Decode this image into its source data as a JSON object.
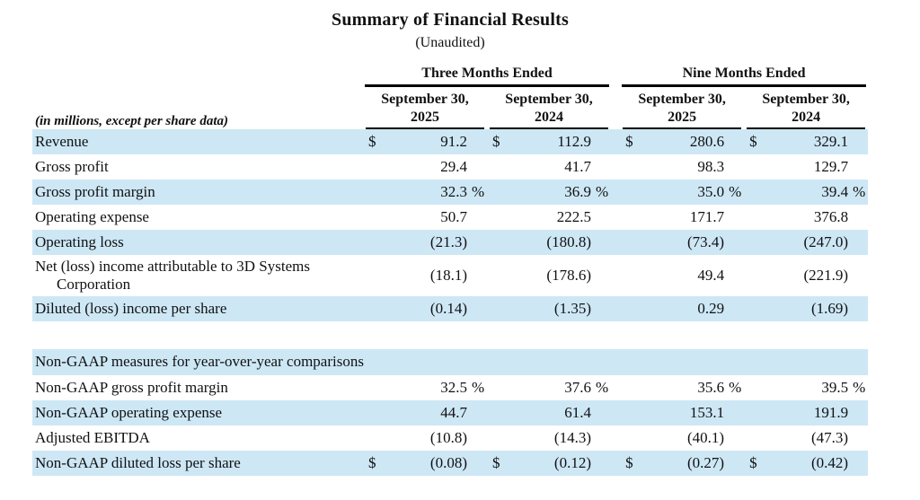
{
  "title": "Summary of Financial Results",
  "subtitle": "(Unaudited)",
  "table": {
    "label_header": "(in millions, except per share data)",
    "groups": [
      "Three Months Ended",
      "Nine Months Ended"
    ],
    "columns": [
      {
        "month": "September 30,",
        "year": "2025"
      },
      {
        "month": "September 30,",
        "year": "2024"
      },
      {
        "month": "September 30,",
        "year": "2025"
      },
      {
        "month": "September 30,",
        "year": "2024"
      }
    ],
    "rows": [
      {
        "type": "data",
        "shade": true,
        "label": "Revenue",
        "cells": [
          {
            "cur": "$",
            "val": "91.2"
          },
          {
            "cur": "$",
            "val": "112.9"
          },
          {
            "cur": "$",
            "val": "280.6"
          },
          {
            "cur": "$",
            "val": "329.1"
          }
        ]
      },
      {
        "type": "data",
        "shade": false,
        "label": "Gross profit",
        "cells": [
          {
            "val": "29.4"
          },
          {
            "val": "41.7"
          },
          {
            "val": "98.3"
          },
          {
            "val": "129.7"
          }
        ]
      },
      {
        "type": "data",
        "shade": true,
        "label": "Gross profit margin",
        "cells": [
          {
            "val": "32.3",
            "pct": "%"
          },
          {
            "val": "36.9",
            "pct": "%"
          },
          {
            "val": "35.0",
            "pct": "%"
          },
          {
            "val": "39.4",
            "pct": "%"
          }
        ]
      },
      {
        "type": "data",
        "shade": false,
        "label": "Operating expense",
        "cells": [
          {
            "val": "50.7"
          },
          {
            "val": "222.5"
          },
          {
            "val": "171.7"
          },
          {
            "val": "376.8"
          }
        ]
      },
      {
        "type": "data",
        "shade": true,
        "label": "Operating loss",
        "cells": [
          {
            "val": "(21.3)"
          },
          {
            "val": "(180.8)"
          },
          {
            "val": "(73.4)"
          },
          {
            "val": "(247.0)"
          }
        ]
      },
      {
        "type": "data",
        "shade": false,
        "tall": true,
        "label_lines": [
          "Net (loss) income attributable to 3D Systems",
          "Corporation"
        ],
        "cells": [
          {
            "val": "(18.1)"
          },
          {
            "val": "(178.6)"
          },
          {
            "val": "49.4"
          },
          {
            "val": "(221.9)"
          }
        ]
      },
      {
        "type": "data",
        "shade": true,
        "label": "Diluted (loss) income per share",
        "cells": [
          {
            "val": "(0.14)"
          },
          {
            "val": "(1.35)"
          },
          {
            "val": "0.29"
          },
          {
            "val": "(1.69)"
          }
        ]
      },
      {
        "type": "spacer"
      },
      {
        "type": "section",
        "shade": true,
        "label": "Non-GAAP measures for year-over-year comparisons"
      },
      {
        "type": "data",
        "shade": false,
        "label": "Non-GAAP gross profit margin",
        "cells": [
          {
            "val": "32.5",
            "pct": "%"
          },
          {
            "val": "37.6",
            "pct": "%"
          },
          {
            "val": "35.6",
            "pct": "%"
          },
          {
            "val": "39.5",
            "pct": "%"
          }
        ]
      },
      {
        "type": "data",
        "shade": true,
        "label": "Non-GAAP operating expense",
        "cells": [
          {
            "val": "44.7"
          },
          {
            "val": "61.4"
          },
          {
            "val": "153.1"
          },
          {
            "val": "191.9"
          }
        ]
      },
      {
        "type": "data",
        "shade": false,
        "label": "Adjusted EBITDA",
        "cells": [
          {
            "val": "(10.8)"
          },
          {
            "val": "(14.3)"
          },
          {
            "val": "(40.1)"
          },
          {
            "val": "(47.3)"
          }
        ]
      },
      {
        "type": "data",
        "shade": true,
        "label": "Non-GAAP diluted loss per share",
        "cells": [
          {
            "cur": "$",
            "val": "(0.08)"
          },
          {
            "cur": "$",
            "val": "(0.12)"
          },
          {
            "cur": "$",
            "val": "(0.27)"
          },
          {
            "cur": "$",
            "val": "(0.42)"
          }
        ]
      }
    ]
  },
  "colors": {
    "row_shade": "#cde7f5",
    "rule": "#000000",
    "text": "#111111"
  }
}
